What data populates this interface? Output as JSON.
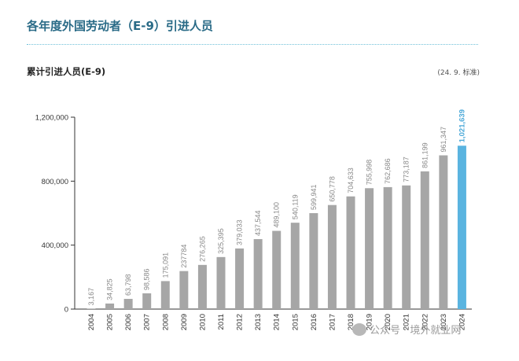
{
  "header": {
    "title": "各年度外国劳动者（E-9）引进人员"
  },
  "chart_data": {
    "type": "bar",
    "title": "累计引进人员(E-9)",
    "note": "(24. 9. 标准)",
    "xlabel": "",
    "ylabel": "",
    "categories": [
      "2004",
      "2005",
      "2006",
      "2007",
      "2008",
      "2009",
      "2010",
      "2011",
      "2012",
      "2013",
      "2014",
      "2015",
      "2016",
      "2017",
      "2018",
      "2019",
      "2020",
      "2021",
      "2022",
      "2023",
      "2024"
    ],
    "values": [
      3167,
      34825,
      63798,
      98586,
      175091,
      237784,
      276265,
      325395,
      379033,
      437544,
      489100,
      540119,
      599941,
      650778,
      704633,
      755998,
      762686,
      773187,
      861199,
      961347,
      1021639
    ],
    "data_labels": [
      "3,167",
      "34,825",
      "63,798",
      "98,586",
      "175,091",
      "237784",
      "276,265",
      "325,395",
      "379,033",
      "437,544",
      "489,100",
      "540,119",
      "599,941",
      "650,778",
      "704,633",
      "755,998",
      "762,686",
      "773,187",
      "861,199",
      "961,347",
      "1,021,639"
    ],
    "y_ticks": [
      0,
      400000,
      800000,
      1200000
    ],
    "y_tick_labels": [
      "0",
      "400,000",
      "800,000",
      "1,200,000"
    ],
    "ylim": [
      0,
      1200000
    ],
    "grid": false,
    "colors": {
      "bar": "#a6a6a6",
      "highlight": "#5ab4e0",
      "title": "#2a6b87",
      "divider": "#6fc0d9"
    },
    "highlight_index": 20
  },
  "watermark": {
    "text": "公众号 · 境外就业网",
    "icon": "wechat-icon"
  }
}
